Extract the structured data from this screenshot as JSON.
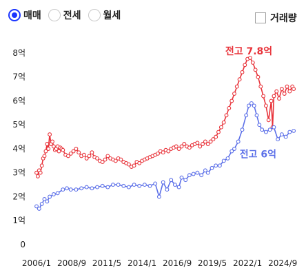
{
  "controls": {
    "radios": [
      {
        "label": "매매",
        "selected": true
      },
      {
        "label": "전세",
        "selected": false
      },
      {
        "label": "월세",
        "selected": false
      }
    ],
    "checkbox": {
      "label": "거래량",
      "checked": false
    }
  },
  "colors": {
    "sale": "#e8333a",
    "jeonse": "#5b6fe8",
    "accent": "#1a35ff"
  },
  "chart_data": {
    "type": "line",
    "title": "",
    "xlabel": "",
    "ylabel": "",
    "grid": false,
    "legend": "none",
    "y_ticks": [
      {
        "value": 0,
        "label": "0"
      },
      {
        "value": 1,
        "label": "1억"
      },
      {
        "value": 2,
        "label": "2억"
      },
      {
        "value": 3,
        "label": "3억"
      },
      {
        "value": 4,
        "label": "4억"
      },
      {
        "value": 5,
        "label": "5억"
      },
      {
        "value": 6,
        "label": "6억"
      },
      {
        "value": 7,
        "label": "7억"
      },
      {
        "value": 8,
        "label": "8억"
      }
    ],
    "ylim": [
      0,
      8.2
    ],
    "x_ticks": [
      {
        "value": 2006.0,
        "label": "2006/1"
      },
      {
        "value": 2008.67,
        "label": "2008/9"
      },
      {
        "value": 2011.33,
        "label": "2011/5"
      },
      {
        "value": 2014.0,
        "label": "2014/1"
      },
      {
        "value": 2016.67,
        "label": "2016/9"
      },
      {
        "value": 2019.33,
        "label": "2019/5"
      },
      {
        "value": 2022.0,
        "label": "2022/1"
      },
      {
        "value": 2024.67,
        "label": "2024/9"
      }
    ],
    "xlim": [
      2006.0,
      2025.6
    ],
    "annotations": [
      {
        "text": "전고 7.8억",
        "series": "sale",
        "x": 2022.1,
        "y": 7.6
      },
      {
        "text": "전고 6억",
        "series": "jeonse",
        "x": 2022.8,
        "y": 3.3
      }
    ],
    "series": [
      {
        "key": "sale",
        "x": [
          2006.0,
          2006.1,
          2006.2,
          2006.3,
          2006.4,
          2006.5,
          2006.6,
          2006.7,
          2006.8,
          2006.9,
          2007.0,
          2007.1,
          2007.2,
          2007.3,
          2007.4,
          2007.5,
          2007.6,
          2007.7,
          2007.8,
          2007.9,
          2008.0,
          2008.2,
          2008.4,
          2008.6,
          2008.8,
          2009.0,
          2009.2,
          2009.4,
          2009.6,
          2009.8,
          2010.0,
          2010.2,
          2010.4,
          2010.6,
          2010.8,
          2011.0,
          2011.2,
          2011.4,
          2011.6,
          2011.8,
          2012.0,
          2012.2,
          2012.4,
          2012.6,
          2012.8,
          2013.0,
          2013.2,
          2013.4,
          2013.6,
          2013.8,
          2014.0,
          2014.2,
          2014.4,
          2014.6,
          2014.8,
          2015.0,
          2015.2,
          2015.4,
          2015.6,
          2015.8,
          2016.0,
          2016.2,
          2016.4,
          2016.6,
          2016.8,
          2017.0,
          2017.2,
          2017.4,
          2017.6,
          2017.8,
          2018.0,
          2018.2,
          2018.4,
          2018.6,
          2018.8,
          2019.0,
          2019.2,
          2019.4,
          2019.6,
          2019.8,
          2020.0,
          2020.2,
          2020.4,
          2020.6,
          2020.8,
          2021.0,
          2021.2,
          2021.4,
          2021.6,
          2021.8,
          2022.0,
          2022.2,
          2022.4,
          2022.6,
          2022.8,
          2023.0,
          2023.2,
          2023.4,
          2023.6,
          2023.8,
          2023.9,
          2024.0,
          2024.2,
          2024.4,
          2024.6,
          2024.8,
          2025.0,
          2025.2,
          2025.4,
          2025.5
        ],
        "values": [
          3.0,
          2.85,
          3.1,
          3.0,
          3.3,
          3.6,
          3.7,
          3.9,
          4.2,
          4.0,
          4.6,
          4.2,
          4.3,
          4.1,
          3.95,
          4.0,
          4.1,
          3.9,
          4.05,
          4.0,
          3.95,
          3.75,
          3.7,
          3.8,
          3.9,
          4.0,
          3.85,
          3.7,
          3.75,
          3.6,
          3.7,
          3.85,
          3.65,
          3.6,
          3.5,
          3.45,
          3.55,
          3.7,
          3.6,
          3.55,
          3.5,
          3.6,
          3.55,
          3.45,
          3.4,
          3.35,
          3.25,
          3.3,
          3.45,
          3.4,
          3.5,
          3.55,
          3.6,
          3.65,
          3.7,
          3.75,
          3.8,
          3.9,
          3.85,
          3.95,
          3.9,
          4.0,
          4.05,
          4.1,
          4.0,
          4.1,
          4.2,
          4.1,
          4.05,
          4.15,
          4.2,
          4.25,
          4.1,
          4.2,
          4.3,
          4.2,
          4.3,
          4.4,
          4.5,
          4.7,
          4.9,
          5.1,
          5.4,
          5.7,
          6.0,
          6.3,
          6.6,
          6.9,
          7.2,
          7.5,
          7.75,
          7.8,
          7.6,
          7.3,
          7.0,
          6.6,
          6.2,
          5.8,
          5.2,
          6.0,
          4.9,
          6.2,
          6.4,
          6.1,
          6.5,
          6.3,
          6.6,
          6.4,
          6.6,
          6.5
        ]
      },
      {
        "key": "jeonse",
        "x": [
          2006.0,
          2006.2,
          2006.4,
          2006.6,
          2006.8,
          2007.0,
          2007.3,
          2007.6,
          2008.0,
          2008.3,
          2008.6,
          2009.0,
          2009.4,
          2009.8,
          2010.2,
          2010.6,
          2011.0,
          2011.4,
          2011.8,
          2012.2,
          2012.6,
          2013.0,
          2013.4,
          2013.8,
          2014.2,
          2014.6,
          2015.0,
          2015.3,
          2015.6,
          2015.9,
          2016.2,
          2016.5,
          2016.8,
          2017.0,
          2017.3,
          2017.6,
          2017.9,
          2018.2,
          2018.5,
          2018.8,
          2019.0,
          2019.3,
          2019.6,
          2019.9,
          2020.2,
          2020.5,
          2020.8,
          2021.0,
          2021.3,
          2021.6,
          2021.9,
          2022.1,
          2022.3,
          2022.5,
          2022.7,
          2022.9,
          2023.1,
          2023.4,
          2023.7,
          2024.0,
          2024.3,
          2024.6,
          2024.9,
          2025.2,
          2025.5
        ],
        "values": [
          1.6,
          1.5,
          1.7,
          1.9,
          1.8,
          2.0,
          2.1,
          2.15,
          2.3,
          2.35,
          2.3,
          2.3,
          2.35,
          2.4,
          2.35,
          2.4,
          2.45,
          2.4,
          2.5,
          2.5,
          2.45,
          2.4,
          2.5,
          2.45,
          2.5,
          2.45,
          2.55,
          2.0,
          2.6,
          2.3,
          2.7,
          2.5,
          2.4,
          2.8,
          2.7,
          2.9,
          2.95,
          3.0,
          2.9,
          3.1,
          3.0,
          3.2,
          3.3,
          3.3,
          3.5,
          3.6,
          3.9,
          4.0,
          4.3,
          4.8,
          5.4,
          5.8,
          5.9,
          5.8,
          5.4,
          5.0,
          4.8,
          4.7,
          4.8,
          4.9,
          4.4,
          4.6,
          4.5,
          4.7,
          4.75
        ]
      }
    ]
  }
}
